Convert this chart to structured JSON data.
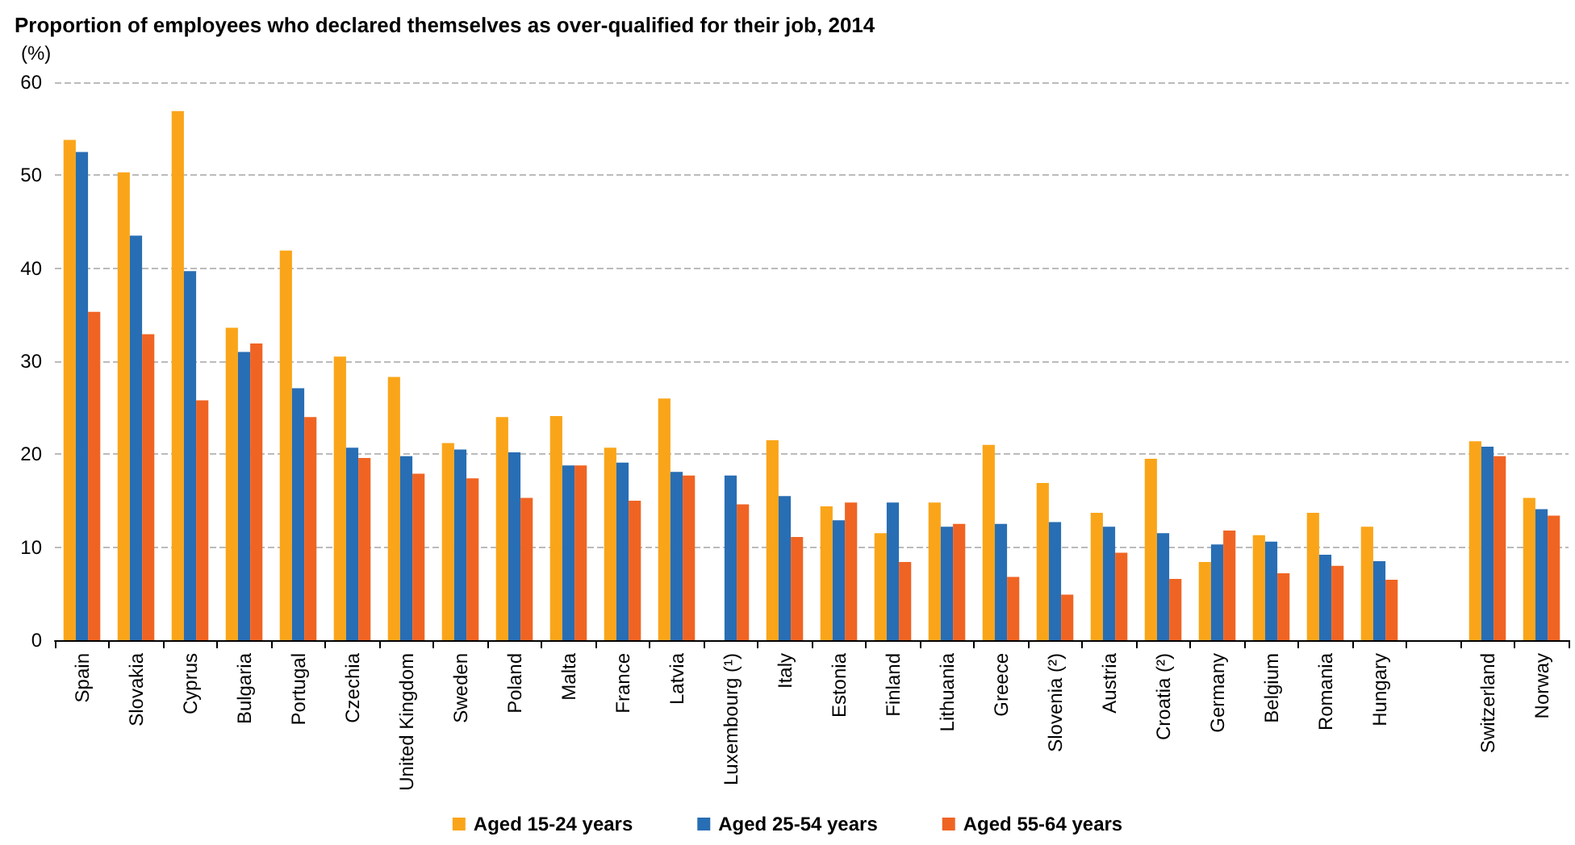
{
  "chart_data": {
    "type": "bar",
    "title": "Proportion of employees who declared themselves as over-qualified for their job, 2014",
    "ylabel": "(%)",
    "categories": [
      "Spain",
      "Slovakia",
      "Cyprus",
      "Bulgaria",
      "Portugal",
      "Czechia",
      "United Kingdom",
      "Sweden",
      "Poland",
      "Malta",
      "France",
      "Latvia",
      "Luxembourg (¹)",
      "Italy",
      "Estonia",
      "Finland",
      "Lithuania",
      "Greece",
      "Slovenia (²)",
      "Austria",
      "Croatia (²)",
      "Germany",
      "Belgium",
      "Romania",
      "Hungary",
      null,
      "Switzerland",
      "Norway"
    ],
    "series": [
      {
        "name": "Aged 15-24 years",
        "color": "#faa519",
        "values": [
          53.8,
          50.3,
          56.9,
          33.6,
          41.9,
          30.5,
          28.3,
          21.2,
          24.0,
          24.1,
          20.7,
          26.0,
          null,
          21.5,
          14.4,
          11.5,
          14.8,
          21.0,
          16.9,
          13.7,
          19.5,
          8.4,
          11.3,
          13.7,
          12.2,
          null,
          21.4,
          15.3
        ]
      },
      {
        "name": "Aged 25-54 years",
        "color": "#286eb4",
        "values": [
          52.5,
          43.5,
          39.7,
          31.0,
          27.1,
          20.7,
          19.8,
          20.5,
          20.2,
          18.8,
          19.1,
          18.1,
          17.7,
          15.5,
          12.9,
          14.8,
          12.2,
          12.5,
          12.7,
          12.2,
          11.5,
          10.3,
          10.6,
          9.2,
          8.5,
          null,
          20.8,
          14.1
        ]
      },
      {
        "name": "Aged 55-64 years",
        "color": "#f06423",
        "values": [
          35.3,
          32.9,
          25.8,
          31.9,
          24.0,
          19.6,
          17.9,
          17.4,
          15.3,
          18.8,
          15.0,
          17.7,
          14.6,
          11.1,
          14.8,
          8.4,
          12.5,
          6.8,
          4.9,
          9.4,
          6.6,
          11.8,
          7.2,
          8.0,
          6.5,
          null,
          19.8,
          13.4
        ]
      }
    ],
    "ylim": [
      0,
      60
    ],
    "yticks": [
      0,
      10,
      20,
      30,
      40,
      50,
      60
    ],
    "grid": "y",
    "legend": "bottom"
  }
}
